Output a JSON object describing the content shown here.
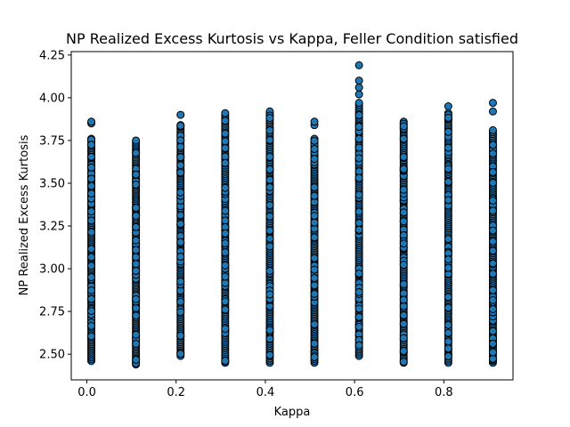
{
  "chart_data": {
    "type": "scatter",
    "title": "NP Realized Excess Kurtosis vs Kappa, Feller Condition satisfied",
    "xlabel": "Kappa",
    "ylabel": "NP Realized Excess Kurtosis",
    "xlim": [
      -0.035,
      0.955
    ],
    "ylim": [
      2.35,
      4.27
    ],
    "xticks": [
      0.0,
      0.2,
      0.4,
      0.6,
      0.8
    ],
    "xtick_labels": [
      "0.0",
      "0.2",
      "0.4",
      "0.6",
      "0.8"
    ],
    "yticks": [
      2.5,
      2.75,
      3.0,
      3.25,
      3.5,
      3.75,
      4.0,
      4.25
    ],
    "ytick_labels": [
      "2.50",
      "2.75",
      "3.00",
      "3.25",
      "3.50",
      "3.75",
      "4.00",
      "4.25"
    ],
    "grid": false,
    "legend": false,
    "marker": {
      "shape": "circle",
      "fill": "#1f77b4",
      "edge": "#000000"
    },
    "columns": [
      {
        "x": 0.01,
        "ymin": 2.46,
        "ymax": 3.76,
        "outliers": [
          3.85,
          3.86
        ]
      },
      {
        "x": 0.11,
        "ymin": 2.44,
        "ymax": 3.75,
        "outliers": []
      },
      {
        "x": 0.21,
        "ymin": 2.49,
        "ymax": 3.84,
        "outliers": [
          3.9
        ]
      },
      {
        "x": 0.31,
        "ymin": 2.45,
        "ymax": 3.91,
        "outliers": []
      },
      {
        "x": 0.41,
        "ymin": 2.45,
        "ymax": 3.92,
        "outliers": []
      },
      {
        "x": 0.51,
        "ymin": 2.45,
        "ymax": 3.76,
        "outliers": [
          3.84,
          3.86
        ]
      },
      {
        "x": 0.61,
        "ymin": 2.49,
        "ymax": 3.97,
        "outliers": [
          4.02,
          4.06,
          4.1,
          4.19
        ]
      },
      {
        "x": 0.71,
        "ymin": 2.45,
        "ymax": 3.86,
        "outliers": []
      },
      {
        "x": 0.81,
        "ymin": 2.45,
        "ymax": 3.91,
        "outliers": [
          3.95
        ]
      },
      {
        "x": 0.91,
        "ymin": 2.45,
        "ymax": 3.81,
        "outliers": [
          3.92,
          3.97
        ]
      }
    ]
  }
}
